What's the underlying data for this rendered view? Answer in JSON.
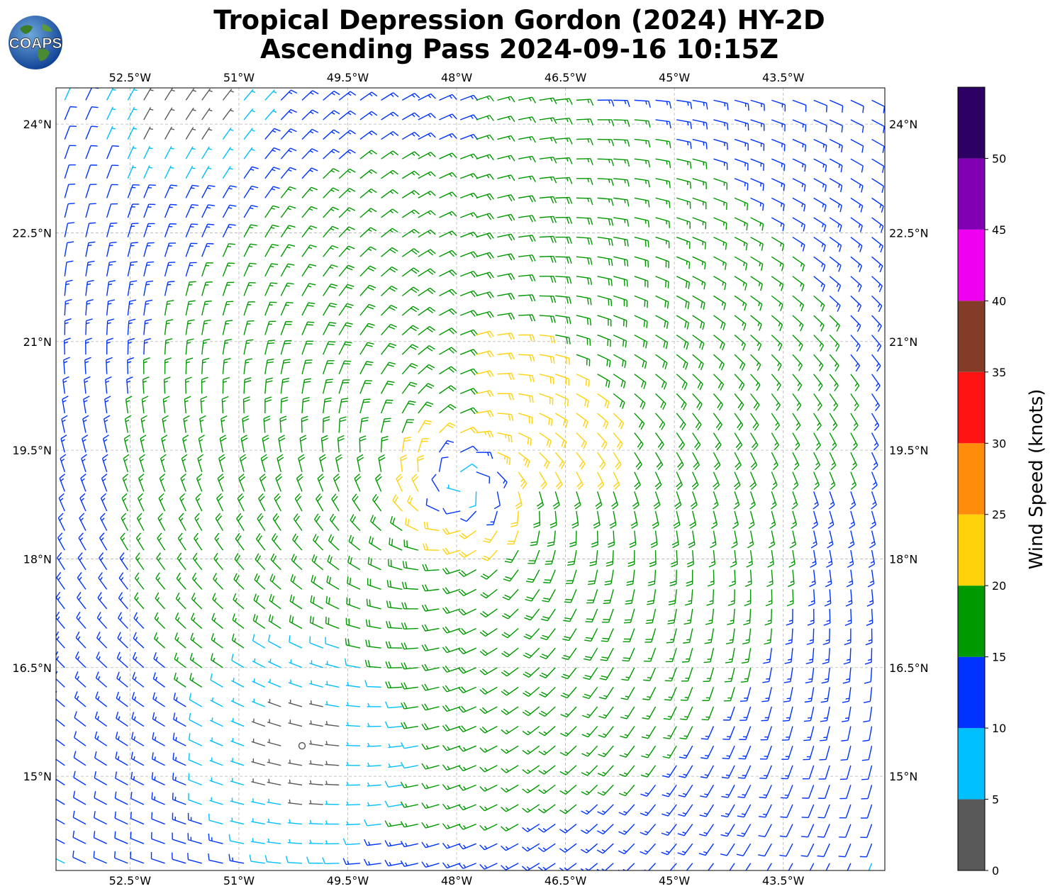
{
  "title": {
    "line1": "Tropical Depression Gordon (2024) HY-2D",
    "line2": "Ascending Pass 2024-09-16 10:15Z"
  },
  "logo": {
    "text": "COAPS",
    "icon": "earth-globe-icon"
  },
  "chart_data": {
    "type": "wind-barb map",
    "lon_ticks": [
      "52.5°W",
      "51°W",
      "49.5°W",
      "48°W",
      "46.5°W",
      "45°W",
      "43.5°W"
    ],
    "lon_values": [
      -52.5,
      -51,
      -49.5,
      -48,
      -46.5,
      -45,
      -43.5
    ],
    "lat_ticks": [
      "24°N",
      "22.5°N",
      "21°N",
      "19.5°N",
      "18°N",
      "16.5°N",
      "15°N"
    ],
    "lat_values": [
      24,
      22.5,
      21,
      19.5,
      18,
      16.5,
      15
    ],
    "xlim": [
      -53.52,
      -42.1
    ],
    "ylim": [
      13.7,
      24.5
    ],
    "grid": true,
    "storm_center": {
      "lon": -47.9,
      "lat": 19.0
    },
    "colorbar": {
      "label": "Wind Speed (knots)",
      "ticks": [
        "0",
        "5",
        "10",
        "15",
        "20",
        "25",
        "30",
        "35",
        "40",
        "45",
        "50"
      ],
      "bins": [
        {
          "min": 0,
          "max": 5,
          "color": "#595959"
        },
        {
          "min": 5,
          "max": 10,
          "color": "#00bfff"
        },
        {
          "min": 10,
          "max": 15,
          "color": "#0033ff"
        },
        {
          "min": 15,
          "max": 20,
          "color": "#009900"
        },
        {
          "min": 20,
          "max": 25,
          "color": "#ffd20a"
        },
        {
          "min": 25,
          "max": 30,
          "color": "#ff8c0a"
        },
        {
          "min": 30,
          "max": 35,
          "color": "#ff1414"
        },
        {
          "min": 35,
          "max": 40,
          "color": "#823c28"
        },
        {
          "min": 40,
          "max": 45,
          "color": "#f000f0"
        },
        {
          "min": 45,
          "max": 50,
          "color": "#8200b4"
        },
        {
          "min": 50,
          "max": 55,
          "color": "#2d0064"
        }
      ]
    }
  }
}
